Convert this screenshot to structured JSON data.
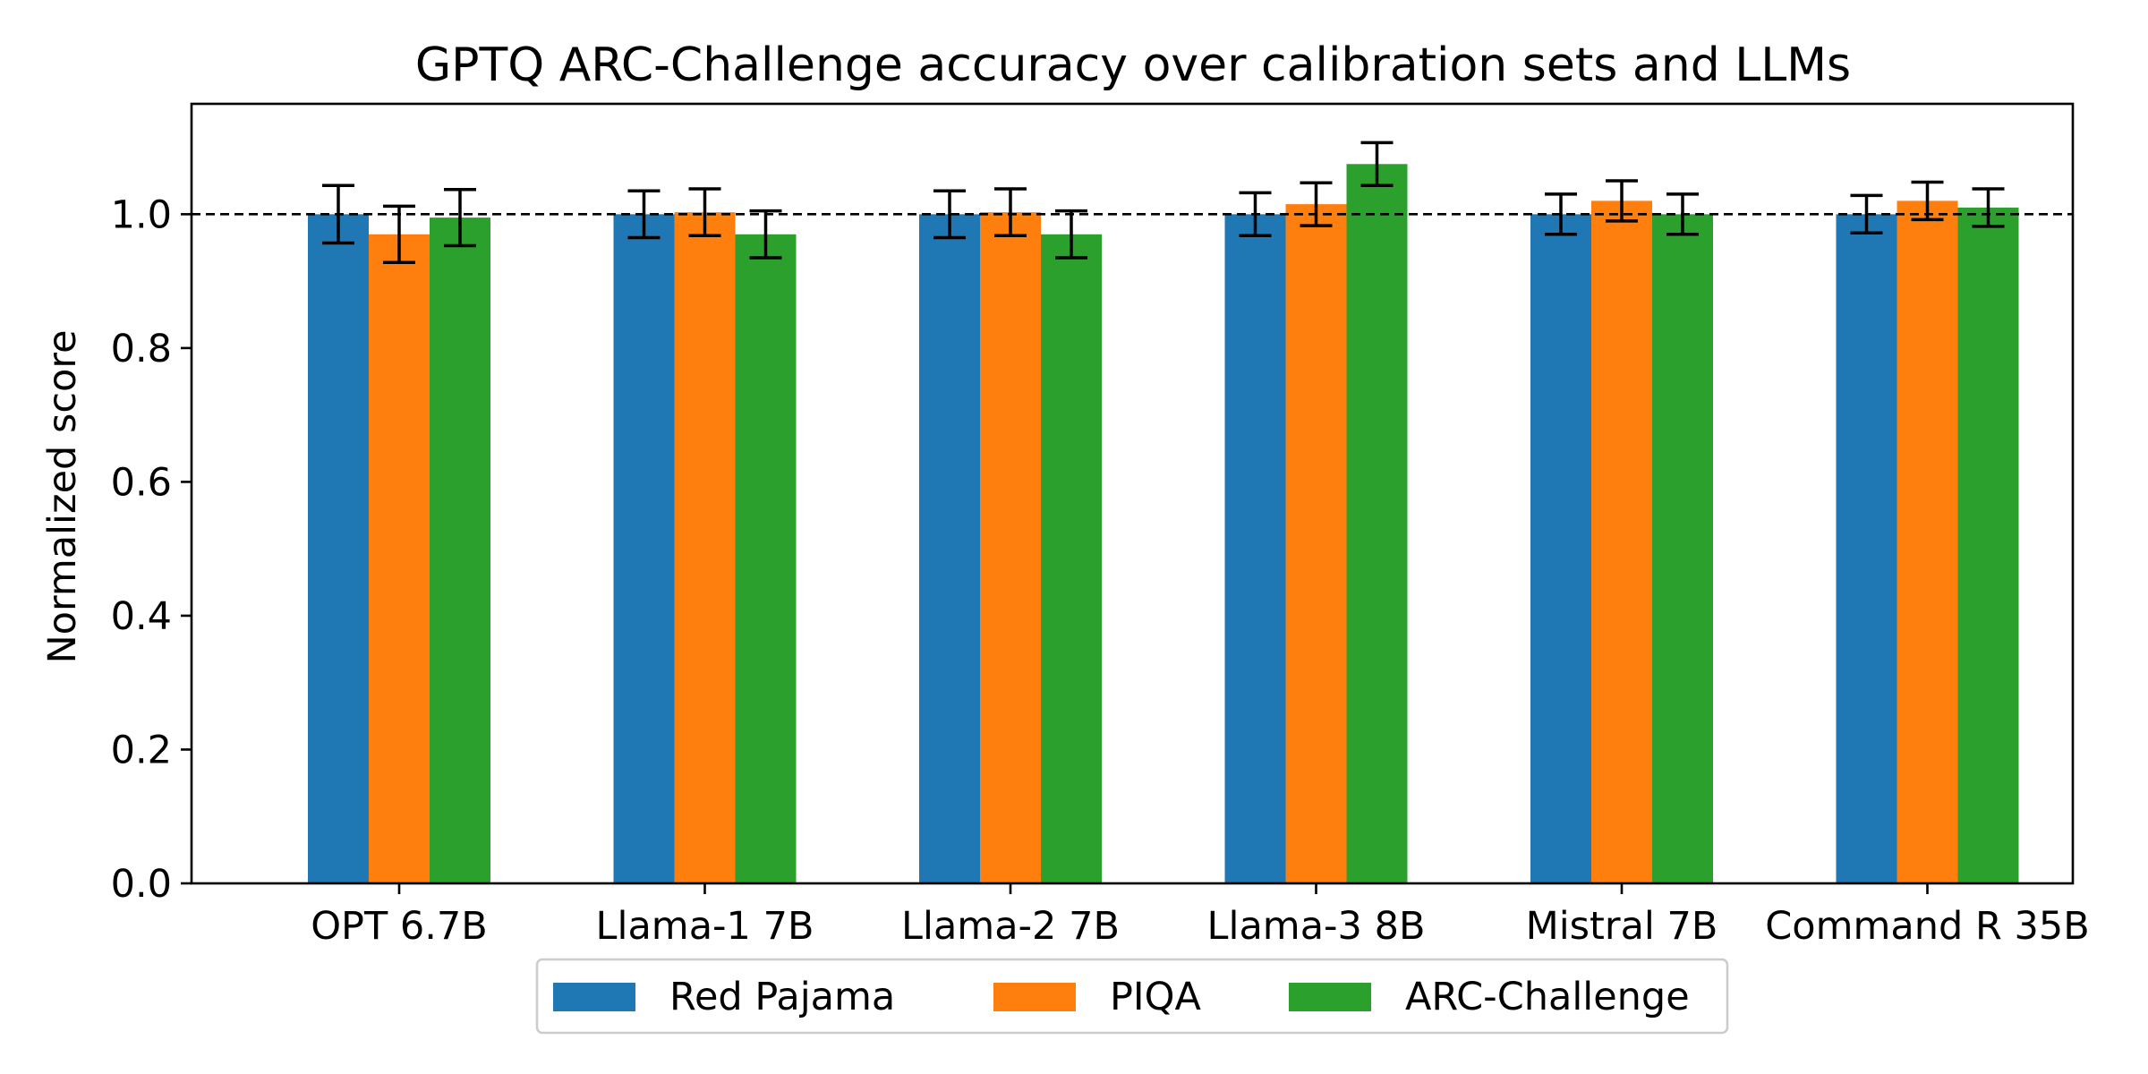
{
  "chart_data": {
    "type": "bar",
    "title": "GPTQ ARC-Challenge accuracy over calibration sets and LLMs",
    "xlabel": "",
    "ylabel": "Normalized score",
    "ylim": [
      0,
      1.165
    ],
    "yticks": [
      "0.0",
      "0.2",
      "0.4",
      "0.6",
      "0.8",
      "1.0"
    ],
    "reference_line": 1.0,
    "grid": false,
    "legend_position": "bottom-center",
    "categories": [
      "OPT 6.7B",
      "Llama-1 7B",
      "Llama-2 7B",
      "Llama-3 8B",
      "Mistral 7B",
      "Command R 35B"
    ],
    "series": [
      {
        "name": "Red Pajama",
        "color": "#1f77b4",
        "values": [
          1.0,
          1.0,
          1.0,
          1.0,
          1.0,
          1.0
        ],
        "error": [
          0.043,
          0.035,
          0.035,
          0.032,
          0.03,
          0.028
        ]
      },
      {
        "name": "PIQA",
        "color": "#ff7f0e",
        "values": [
          0.97,
          1.003,
          1.003,
          1.015,
          1.02,
          1.02
        ],
        "error": [
          0.042,
          0.035,
          0.035,
          0.032,
          0.03,
          0.028
        ]
      },
      {
        "name": "ARC-Challenge",
        "color": "#2ca02c",
        "values": [
          0.995,
          0.97,
          0.97,
          1.075,
          1.0,
          1.01
        ],
        "error": [
          0.042,
          0.035,
          0.035,
          0.032,
          0.03,
          0.028
        ]
      }
    ]
  }
}
